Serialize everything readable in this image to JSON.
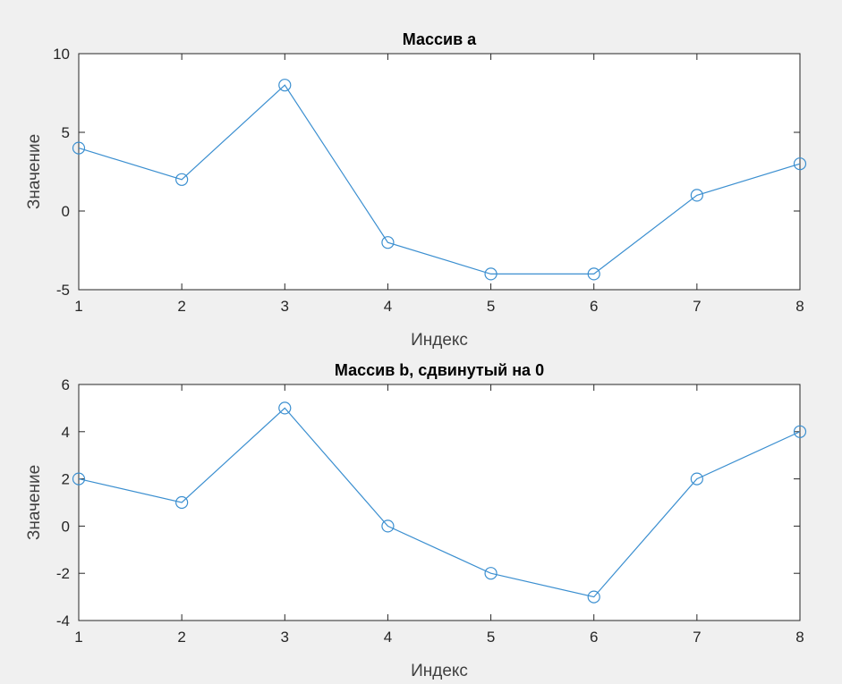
{
  "colors": {
    "series": "#3b8fd0",
    "figure_background": "#f0f0f0",
    "axes_background": "#ffffff"
  },
  "chart_data": [
    {
      "type": "line",
      "title": "Массив a",
      "xlabel": "Индекс",
      "ylabel": "Значение",
      "x": [
        1,
        2,
        3,
        4,
        5,
        6,
        7,
        8
      ],
      "series": [
        {
          "values": [
            4,
            2,
            8,
            -2,
            -4,
            -4,
            1,
            3
          ],
          "marker": "circle"
        }
      ],
      "xlim": [
        1,
        8
      ],
      "ylim": [
        -5,
        10
      ],
      "xticks": [
        1,
        2,
        3,
        4,
        5,
        6,
        7,
        8
      ],
      "yticks": [
        -5,
        0,
        5,
        10
      ],
      "grid": false,
      "legend": "none"
    },
    {
      "type": "line",
      "title": "Массив b, сдвинутый на 0",
      "xlabel": "Индекс",
      "ylabel": "Значение",
      "x": [
        1,
        2,
        3,
        4,
        5,
        6,
        7,
        8
      ],
      "series": [
        {
          "values": [
            2,
            1,
            5,
            0,
            -2,
            -3,
            2,
            4
          ],
          "marker": "circle"
        }
      ],
      "xlim": [
        1,
        8
      ],
      "ylim": [
        -4,
        6
      ],
      "xticks": [
        1,
        2,
        3,
        4,
        5,
        6,
        7,
        8
      ],
      "yticks": [
        -4,
        -2,
        0,
        2,
        4,
        6
      ],
      "grid": false,
      "legend": "none"
    }
  ]
}
